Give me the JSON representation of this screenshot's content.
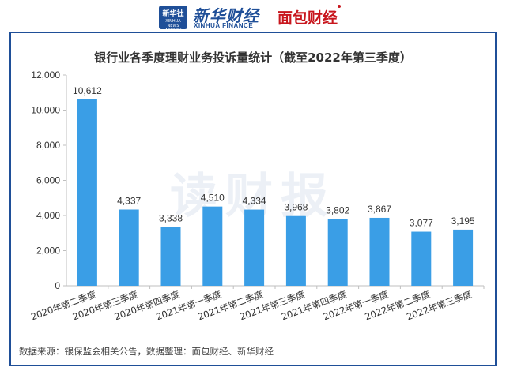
{
  "header": {
    "xinhua_badge_cn": "新华社",
    "xinhua_badge_en": "XINHUA NEWS AGENCY",
    "xinhua_name": "新华财经",
    "xinhua_en": "XINHUA FINANCE",
    "mianbao_name": "面包财经"
  },
  "watermark": "读财报",
  "source_note": "数据来源：银保监会相关公告，数据整理：面包财经、新华财经",
  "colors": {
    "bar": "#3a9ee6",
    "frame": "#1f4f98",
    "brand_red": "#c8161d"
  },
  "chart_data": {
    "type": "bar",
    "title": "银行业各季度理财业务投诉量统计（截至2022年第三季度）",
    "xlabel": "",
    "ylabel": "",
    "ylim": [
      0,
      12000
    ],
    "yticks": [
      "0",
      "2,000",
      "4,000",
      "6,000",
      "8,000",
      "10,000",
      "12,000"
    ],
    "ytick_values": [
      0,
      2000,
      4000,
      6000,
      8000,
      10000,
      12000
    ],
    "grid": false,
    "categories": [
      "2020年第二季度",
      "2020年第三季度",
      "2020年第四季度",
      "2021年第一季度",
      "2021年第二季度",
      "2021年第三季度",
      "2021年第四季度",
      "2022年第一季度",
      "2022年第二季度",
      "2022年第三季度"
    ],
    "values": [
      10612,
      4337,
      3338,
      4510,
      4334,
      3968,
      3802,
      3867,
      3077,
      3195
    ],
    "data_labels": [
      "10,612",
      "4,337",
      "3,338",
      "4,510",
      "4,334",
      "3,968",
      "3,802",
      "3,867",
      "3,077",
      "3,195"
    ]
  }
}
